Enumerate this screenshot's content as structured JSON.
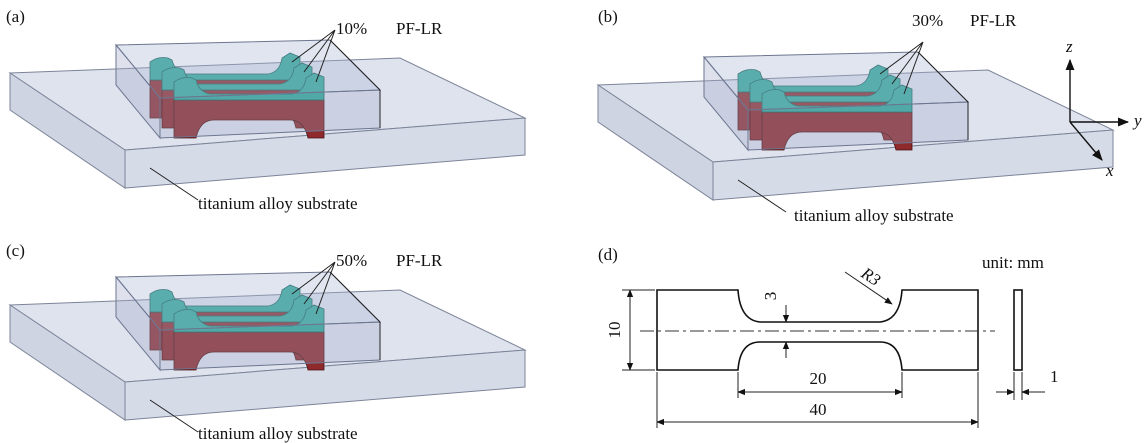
{
  "panels": [
    {
      "label": "(a)",
      "fraction": "10%",
      "material": "PF-LR",
      "substrate": "titanium alloy substrate"
    },
    {
      "label": "(b)",
      "fraction": "30%",
      "material": "PF-LR",
      "substrate": "titanium alloy substrate"
    },
    {
      "label": "(c)",
      "fraction": "50%",
      "material": "PF-LR",
      "substrate": "titanium alloy substrate"
    }
  ],
  "axes": {
    "z": "z",
    "y": "y",
    "x": "x"
  },
  "drawing": {
    "label": "(d)",
    "unit": "unit: mm",
    "radius": "R3",
    "neck_width": 3,
    "width": 10,
    "neck_length": 20,
    "length": 40,
    "thickness": 1
  }
}
